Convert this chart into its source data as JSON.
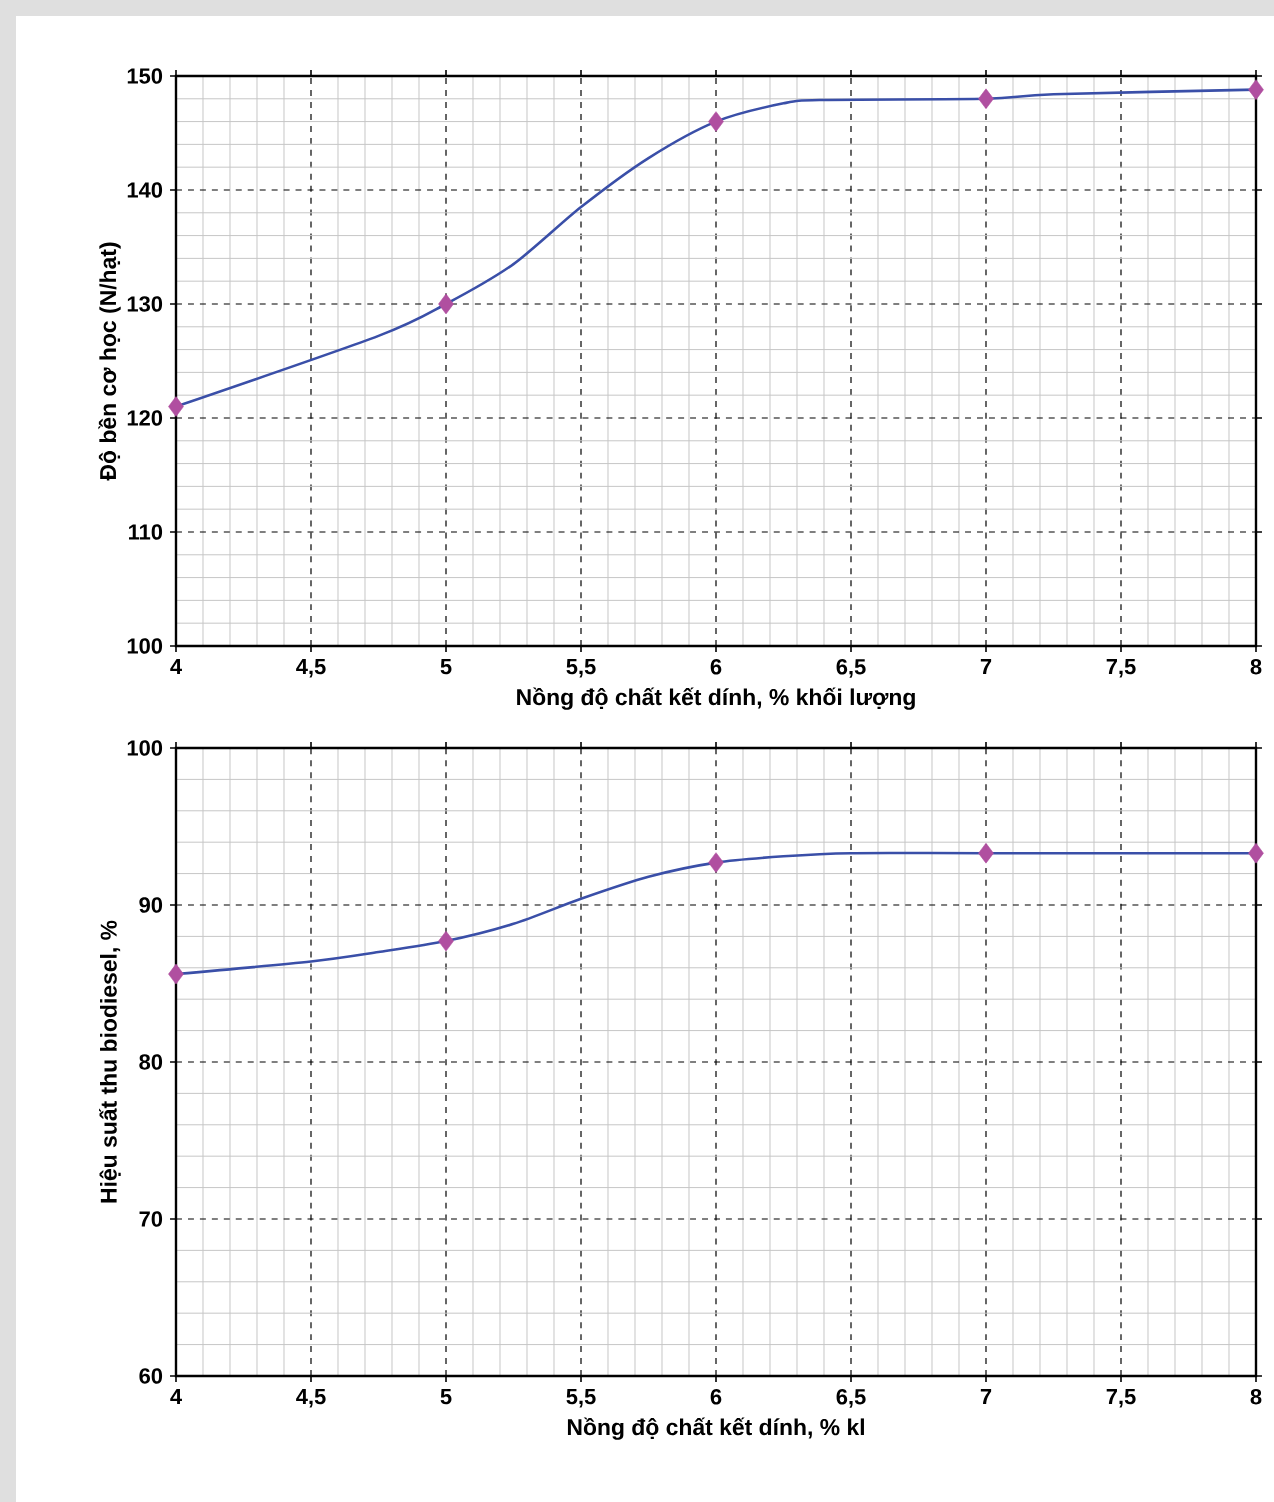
{
  "chart_data": [
    {
      "type": "line",
      "xlabel": "Nồng độ chất kết dính, % khối lượng",
      "ylabel": "Độ bền cơ học (N/hạt)",
      "xlim": [
        4,
        8
      ],
      "ylim": [
        100,
        150
      ],
      "xticks": [
        4,
        {
          "value": 4.5,
          "label": "4,5"
        },
        5,
        {
          "value": 5.5,
          "label": "5,5"
        },
        6,
        {
          "value": 6.5,
          "label": "6,5"
        },
        7,
        {
          "value": 7.5,
          "label": "7,5"
        },
        8
      ],
      "yticks": [
        100,
        110,
        120,
        130,
        140,
        150
      ],
      "grid": true,
      "series": [
        {
          "color": "#3a4fa8",
          "marker": "none",
          "line_style": "solid",
          "x": [
            4,
            4.75,
            5,
            5.25,
            5.5,
            5.75,
            6,
            6.25,
            6.4,
            7,
            7.25,
            8
          ],
          "values": [
            121,
            127.2,
            130,
            133.5,
            138.5,
            142.8,
            146,
            147.6,
            147.9,
            148,
            148.4,
            148.8
          ]
        },
        {
          "type": "scatter",
          "color": "#b04fa0",
          "marker": "diamond",
          "x": [
            4,
            5,
            6,
            7,
            8
          ],
          "values": [
            121,
            130,
            146,
            148,
            148.8
          ]
        }
      ]
    },
    {
      "type": "line",
      "xlabel": "Nồng độ chất kết dính, % kl",
      "ylabel": "Hiệu suất thu biodiesel, %",
      "xlim": [
        4,
        8
      ],
      "ylim": [
        60,
        100
      ],
      "xticks": [
        4,
        {
          "value": 4.5,
          "label": "4,5"
        },
        5,
        {
          "value": 5.5,
          "label": "5,5"
        },
        6,
        {
          "value": 6.5,
          "label": "6,5"
        },
        7,
        {
          "value": 7.5,
          "label": "7,5"
        },
        8
      ],
      "yticks": [
        60,
        70,
        80,
        90,
        100
      ],
      "grid": true,
      "series": [
        {
          "color": "#3a4fa8",
          "marker": "none",
          "line_style": "solid",
          "x": [
            4,
            4.5,
            4.75,
            5,
            5.25,
            5.5,
            5.75,
            6,
            6.25,
            6.5,
            7,
            8
          ],
          "values": [
            85.6,
            86.4,
            87.0,
            87.7,
            88.8,
            90.4,
            91.8,
            92.7,
            93.1,
            93.3,
            93.3,
            93.3
          ]
        },
        {
          "type": "scatter",
          "color": "#b04fa0",
          "marker": "diamond",
          "x": [
            4,
            5,
            6,
            7,
            8
          ],
          "values": [
            85.6,
            87.7,
            92.7,
            93.3,
            93.3
          ]
        }
      ]
    }
  ]
}
